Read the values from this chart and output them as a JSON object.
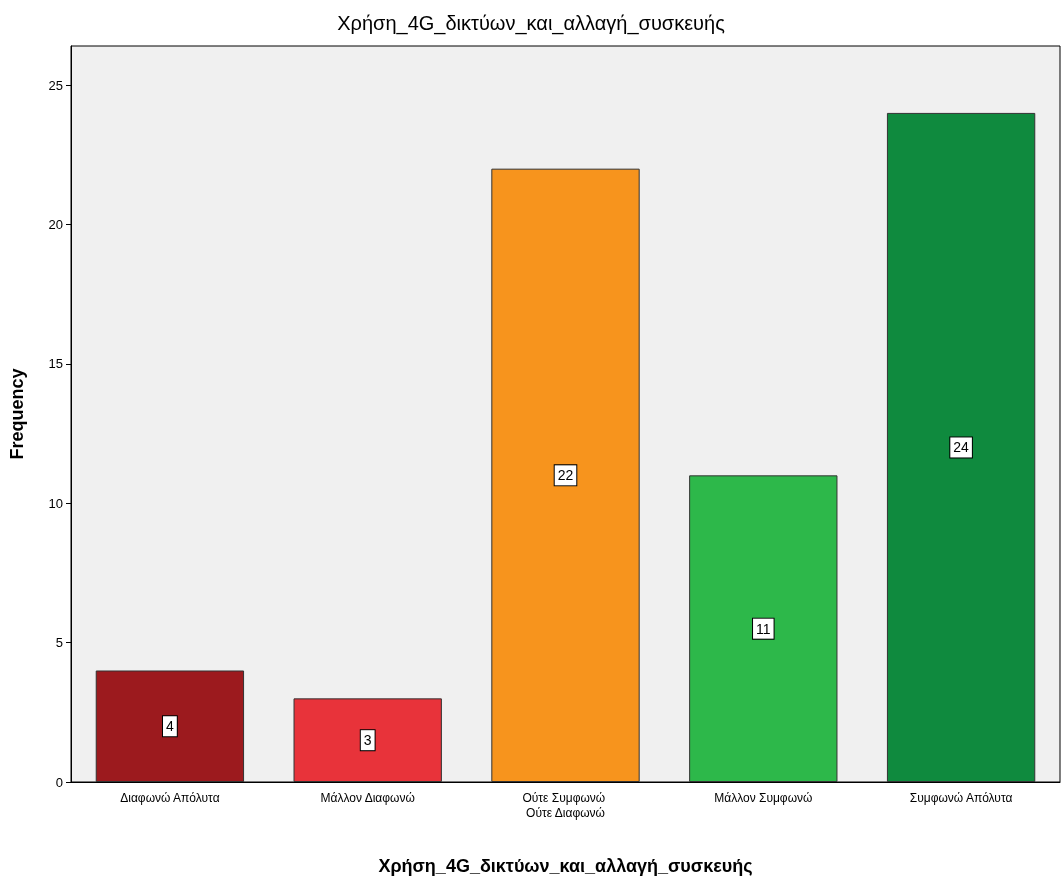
{
  "chart_data": {
    "type": "bar",
    "title": "Χρήση_4G_δικτύων_και_αλλαγή_συσκευής",
    "xlabel": "Χρήση_4G_δικτύων_και_αλλαγή_συσκευής",
    "ylabel": "Frequency",
    "categories": [
      "Διαφωνώ Απόλυτα",
      "Μάλλον Διαφωνώ",
      "Ούτε Συμφωνώ Ούτε Διαφωνώ",
      "Μάλλον Συμφωνώ",
      "Συμφωνώ Απόλυτα"
    ],
    "values": [
      4,
      3,
      22,
      11,
      24
    ],
    "colors": [
      "#9c1a1e",
      "#e8333a",
      "#f7941d",
      "#2db84a",
      "#0f8a3e"
    ],
    "ylim": [
      0,
      26.4
    ],
    "yticks": [
      0,
      5,
      10,
      15,
      20,
      25
    ],
    "data_labels": true
  }
}
